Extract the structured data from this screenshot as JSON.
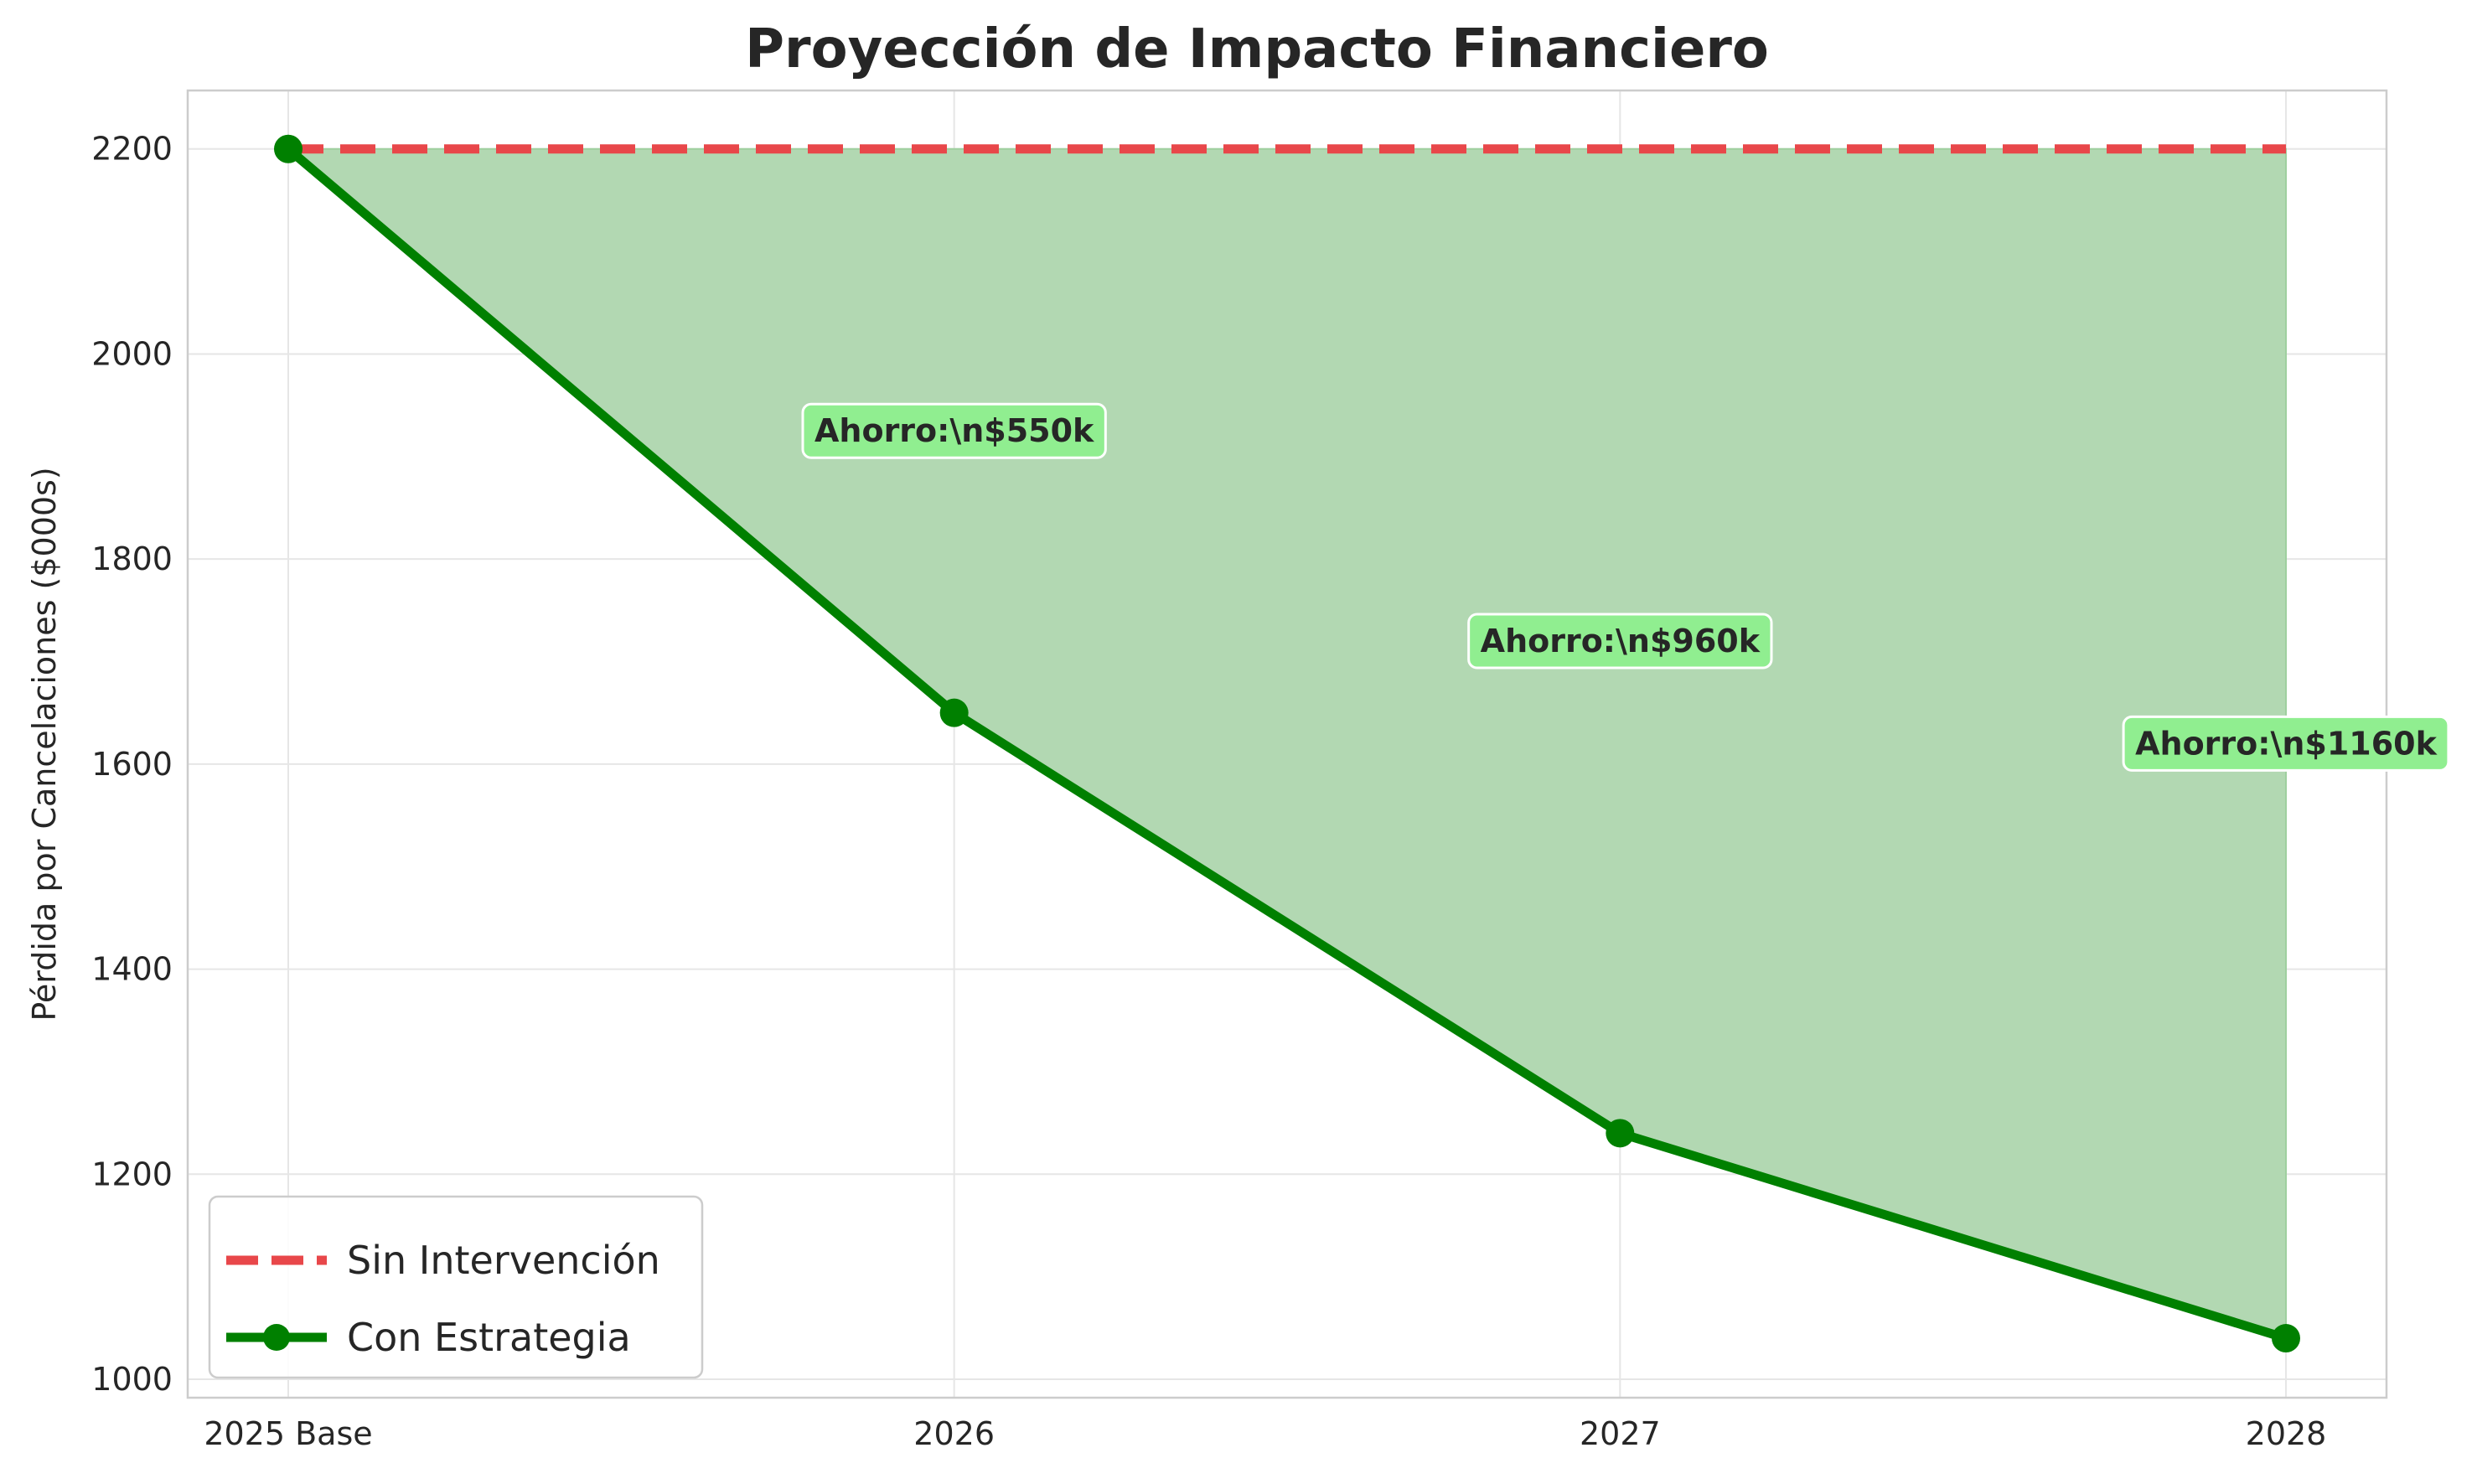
{
  "chart_data": {
    "type": "line",
    "title": "Proyección de Impacto Financiero",
    "xlabel": "",
    "ylabel": "Pérdida por Cancelaciones ($000s)",
    "categories": [
      "2025 Base",
      "2026",
      "2027",
      "2028"
    ],
    "ylim": [
      982,
      2257
    ],
    "yticks": [
      1000,
      1200,
      1400,
      1600,
      1800,
      2000,
      2200
    ],
    "grid": true,
    "legend_position": "lower-left",
    "series": [
      {
        "name": "Sin Intervención",
        "values": [
          2200,
          2200,
          2200,
          2200
        ],
        "color": "#e8474a",
        "style": "dashed"
      },
      {
        "name": "Con Estrategia",
        "values": [
          2200,
          1650,
          1240,
          1040
        ],
        "color": "#008000",
        "style": "solid-markers"
      }
    ],
    "fill_between": {
      "color": "#b2d8b2"
    },
    "annotations": [
      {
        "text": "Ahorro:\\n$550k",
        "x_index": 1,
        "y": 1925
      },
      {
        "text": "Ahorro:\\n$960k",
        "x_index": 2,
        "y": 1720
      },
      {
        "text": "Ahorro:\\n$1160k",
        "x_index": 3,
        "y": 1620
      }
    ],
    "annotation_box_color": "#90ee90"
  }
}
